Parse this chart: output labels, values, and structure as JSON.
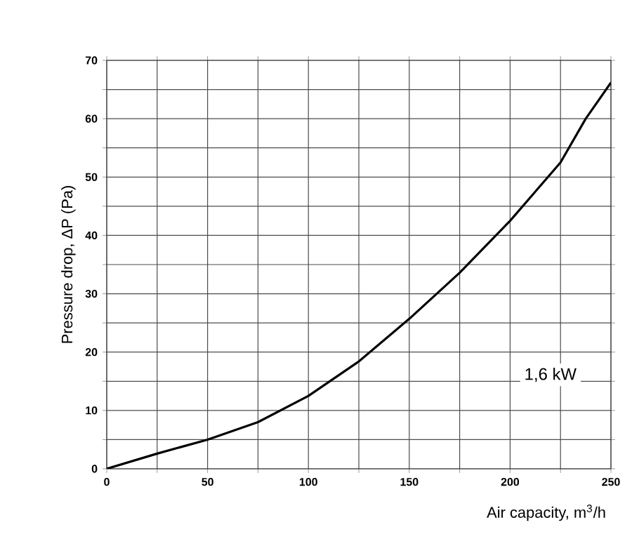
{
  "chart_data": {
    "type": "line",
    "xlabel": "Air capacity, m$^{3}$/h",
    "ylabel": "Pressure drop, ΔP (Pa)",
    "xlim": [
      0,
      250
    ],
    "ylim": [
      0,
      70
    ],
    "xticks": [
      0,
      {
        "value": 25,
        "label": null
      },
      50,
      {
        "value": 75,
        "label": null
      },
      100,
      {
        "value": 125,
        "label": null
      },
      150,
      {
        "value": 175,
        "label": null
      },
      200,
      {
        "value": 225,
        "label": null
      },
      250
    ],
    "yticks": [
      0,
      {
        "value": 5,
        "label": null
      },
      10,
      {
        "value": 15,
        "label": null
      },
      20,
      {
        "value": 25,
        "label": null
      },
      30,
      {
        "value": 35,
        "label": null
      },
      40,
      {
        "value": 45,
        "label": null
      },
      50,
      {
        "value": 55,
        "label": null
      },
      60,
      {
        "value": 65,
        "label": null
      },
      70
    ],
    "grid": true,
    "legend": "bottom right",
    "series": [
      {
        "name": "1,6 kW",
        "color": "#000000",
        "x": [
          0,
          25,
          50,
          75,
          100,
          125,
          150,
          175,
          200,
          225,
          237.5,
          250
        ],
        "values": [
          0,
          2.6,
          5,
          8,
          12.5,
          18.4,
          25.7,
          33.6,
          42.5,
          52.5,
          60,
          66.2
        ]
      }
    ]
  }
}
